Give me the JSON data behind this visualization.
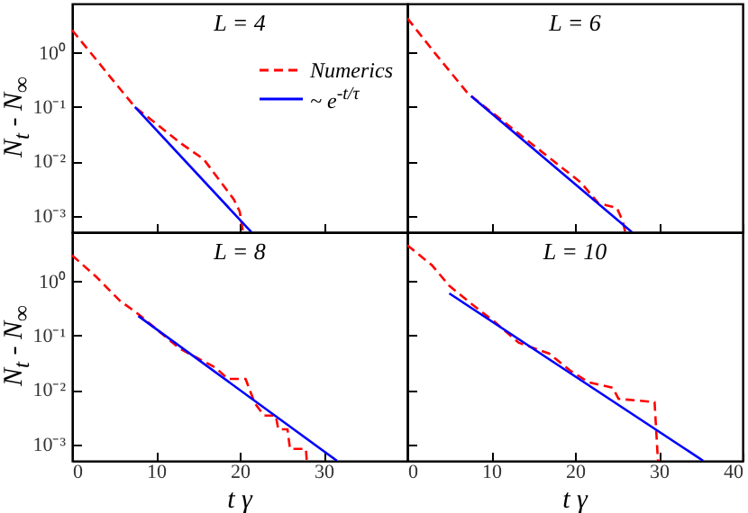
{
  "chart_data": [
    {
      "type": "line",
      "title": "L = 4",
      "ylabel": "N$_{t}$ - N$_{∞}$",
      "log": "y",
      "xlim": [
        0,
        40
      ],
      "ylim": [
        0.0005,
        8
      ],
      "xticks": [
        0,
        10,
        20,
        30,
        40
      ],
      "yticks": [
        {
          "value": 0.001,
          "label": "10⁻³"
        },
        {
          "value": 0.01,
          "label": "10⁻²"
        },
        {
          "value": 0.1,
          "label": "10⁻¹"
        },
        {
          "value": 1,
          "label": "10⁰"
        }
      ],
      "tick_labels": "y",
      "legend": "top right",
      "series": [
        {
          "name": "Numerics",
          "color": "#ff0000",
          "line_style": "dashed",
          "x": [
            0,
            2.9,
            4.6,
            7.5,
            10,
            13,
            15.7,
            17.5,
            19.3,
            20,
            20.4
          ],
          "values": [
            2.6,
            0.74,
            0.35,
            0.1,
            0.05,
            0.0214,
            0.011,
            0.0047,
            0.002,
            0.0012,
            0.0005
          ]
        },
        {
          "name": "~ e$^{-t/τ}$",
          "color": "#0000ff",
          "line_style": "solid",
          "x": [
            7.5,
            21.4
          ],
          "values": [
            0.1,
            0.0005
          ]
        }
      ]
    },
    {
      "type": "line",
      "title": "L = 6",
      "log": "y",
      "xlim": [
        0,
        40
      ],
      "ylim": [
        0.0005,
        8
      ],
      "xticks": [
        0,
        10,
        20,
        30,
        40
      ],
      "yticks": [
        {
          "value": 0.001,
          "label": null
        },
        {
          "value": 0.01,
          "label": null
        },
        {
          "value": 0.1,
          "label": null
        },
        {
          "value": 1,
          "label": null
        }
      ],
      "tick_labels": false,
      "series": [
        {
          "color": "#ff0000",
          "line_style": "dashed",
          "x": [
            0,
            3.3,
            7.2,
            15.2,
            20.7,
            22.8,
            25,
            25.7,
            26
          ],
          "values": [
            4.3,
            0.98,
            0.18,
            0.019,
            0.0041,
            0.0017,
            0.0014,
            0.0008,
            0.0005
          ]
        },
        {
          "color": "#0000ff",
          "line_style": "solid",
          "x": [
            7.6,
            26.8
          ],
          "values": [
            0.16,
            0.0005
          ]
        }
      ]
    },
    {
      "type": "line",
      "title": "L = 8",
      "xlabel": "t γ",
      "ylabel": "N$_{t}$ - N$_{∞}$",
      "log": "y",
      "xlim": [
        0,
        40
      ],
      "ylim": [
        0.0005,
        8
      ],
      "xticks": [
        0,
        10,
        20,
        30,
        {
          "value": 40,
          "label": null
        }
      ],
      "yticks": [
        {
          "value": 0.001,
          "label": "10⁻³"
        },
        {
          "value": 0.01,
          "label": "10⁻²"
        },
        {
          "value": 0.1,
          "label": "10⁻¹"
        },
        {
          "value": 1,
          "label": "10⁰"
        }
      ],
      "series": [
        {
          "color": "#ff0000",
          "line_style": "dashed",
          "x": [
            0,
            2.9,
            5.7,
            7.9,
            12.9,
            17.1,
            18.6,
            20.7,
            21.8,
            22.9,
            24.3,
            24.6,
            25.7,
            26,
            27.9,
            28
          ],
          "values": [
            3.0,
            1.2,
            0.44,
            0.25,
            0.057,
            0.026,
            0.016,
            0.016,
            0.0057,
            0.0034,
            0.0034,
            0.0019,
            0.0019,
            0.00083,
            0.00083,
            0.0005
          ]
        },
        {
          "color": "#0000ff",
          "line_style": "solid",
          "x": [
            7.9,
            31.6
          ],
          "values": [
            0.23,
            0.0005
          ]
        }
      ]
    },
    {
      "type": "line",
      "title": "L = 10",
      "xlabel": "t γ",
      "log": "y",
      "xlim": [
        0,
        40
      ],
      "ylim": [
        0.0005,
        8
      ],
      "xticks": [
        0,
        10,
        20,
        30,
        40
      ],
      "yticks": [
        {
          "value": 0.001,
          "label": null
        },
        {
          "value": 0.01,
          "label": null
        },
        {
          "value": 0.1,
          "label": null
        },
        {
          "value": 1,
          "label": null
        }
      ],
      "tick_labels": "x",
      "series": [
        {
          "color": "#ff0000",
          "line_style": "dashed",
          "x": [
            0,
            2.9,
            5,
            7.6,
            10.4,
            13.3,
            16.9,
            19.4,
            21.6,
            24.5,
            25.2,
            29.5,
            29.9
          ],
          "values": [
            4.6,
            2.0,
            0.83,
            0.39,
            0.18,
            0.074,
            0.047,
            0.023,
            0.014,
            0.011,
            0.0069,
            0.006,
            0.0005
          ]
        },
        {
          "color": "#0000ff",
          "line_style": "solid",
          "x": [
            5,
            35.3
          ],
          "values": [
            0.6,
            0.0005
          ]
        }
      ]
    }
  ]
}
